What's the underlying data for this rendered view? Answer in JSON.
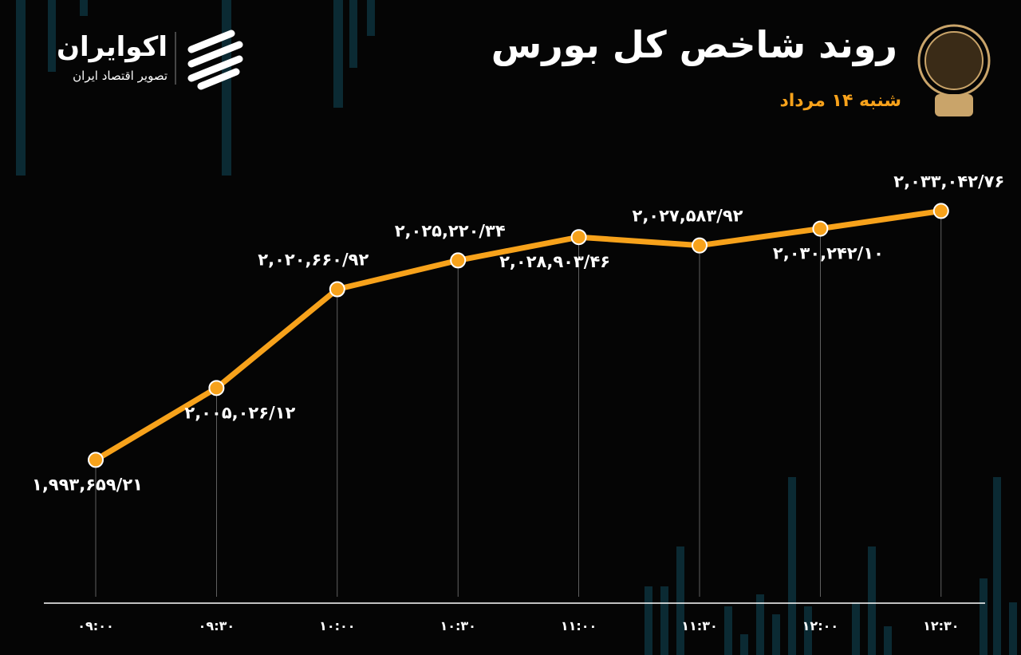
{
  "chart_data": {
    "type": "line",
    "title": "روند شاخص کل بورس",
    "subtitle": "شنبه ۱۴ مرداد",
    "brand_name": "اکوایران",
    "brand_tagline": "تصویر اقتصاد ایران",
    "categories": [
      "۰۹:۰۰",
      "۰۹:۳۰",
      "۱۰:۰۰",
      "۱۰:۳۰",
      "۱۱:۰۰",
      "۱۱:۳۰",
      "۱۲:۰۰",
      "۱۲:۳۰"
    ],
    "values": [
      1993659.21,
      2005026.12,
      2020660.92,
      2025220.34,
      2028903.46,
      2027583.92,
      2030242.1,
      2033042.76
    ],
    "value_labels": [
      "۱,۹۹۳,۶۵۹/۲۱",
      "۲,۰۰۵,۰۲۶/۱۲",
      "۲,۰۲۰,۶۶۰/۹۲",
      "۲,۰۲۵,۲۲۰/۳۴",
      "۲,۰۲۸,۹۰۳/۴۶",
      "۲,۰۲۷,۵۸۳/۹۲",
      "۲,۰۳۰,۲۴۲/۱۰",
      "۲,۰۳۳,۰۴۲/۷۶"
    ],
    "color": "#f7a21b",
    "ylim": [
      1972000,
      2040000
    ]
  }
}
